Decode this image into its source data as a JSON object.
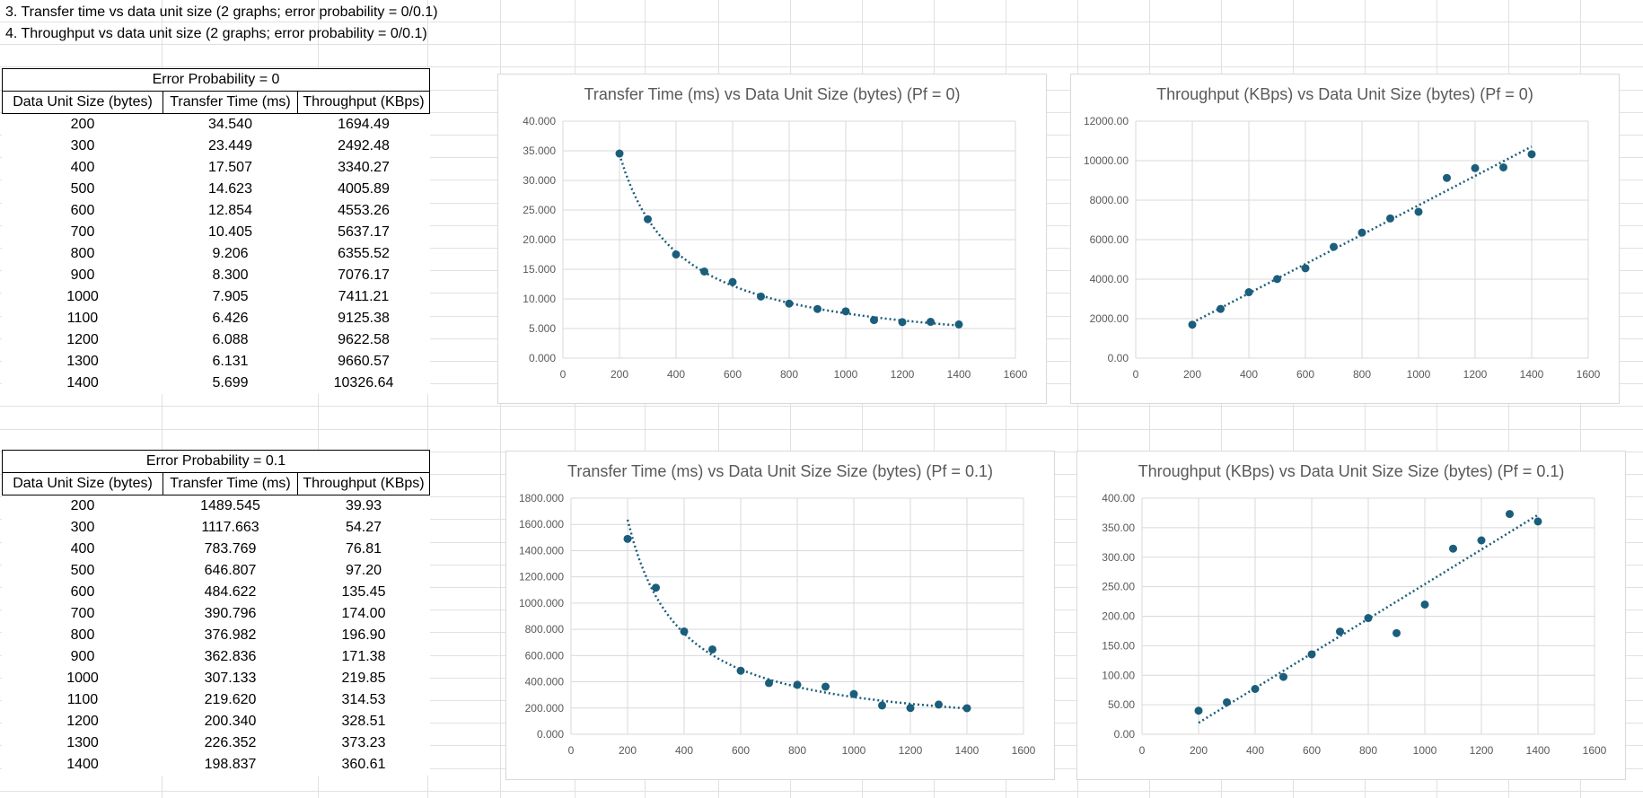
{
  "notes": [
    "3. Transfer time vs data unit size (2 graphs; error probability = 0/0.1)",
    "4. Throughput vs data unit size (2 graphs; error probability = 0/0.1)"
  ],
  "tables": [
    {
      "title": "Error Probability = 0",
      "headers": [
        "Data Unit Size (bytes)",
        "Transfer Time (ms)",
        "Throughput (KBps)"
      ],
      "rows": [
        [
          "200",
          "34.540",
          "1694.49"
        ],
        [
          "300",
          "23.449",
          "2492.48"
        ],
        [
          "400",
          "17.507",
          "3340.27"
        ],
        [
          "500",
          "14.623",
          "4005.89"
        ],
        [
          "600",
          "12.854",
          "4553.26"
        ],
        [
          "700",
          "10.405",
          "5637.17"
        ],
        [
          "800",
          "9.206",
          "6355.52"
        ],
        [
          "900",
          "8.300",
          "7076.17"
        ],
        [
          "1000",
          "7.905",
          "7411.21"
        ],
        [
          "1100",
          "6.426",
          "9125.38"
        ],
        [
          "1200",
          "6.088",
          "9622.58"
        ],
        [
          "1300",
          "6.131",
          "9660.57"
        ],
        [
          "1400",
          "5.699",
          "10326.64"
        ]
      ]
    },
    {
      "title": "Error Probability = 0.1",
      "headers": [
        "Data Unit Size (bytes)",
        "Transfer Time (ms)",
        "Throughput (KBps)"
      ],
      "rows": [
        [
          "200",
          "1489.545",
          "39.93"
        ],
        [
          "300",
          "1117.663",
          "54.27"
        ],
        [
          "400",
          "783.769",
          "76.81"
        ],
        [
          "500",
          "646.807",
          "97.20"
        ],
        [
          "600",
          "484.622",
          "135.45"
        ],
        [
          "700",
          "390.796",
          "174.00"
        ],
        [
          "800",
          "376.982",
          "196.90"
        ],
        [
          "900",
          "362.836",
          "171.38"
        ],
        [
          "1000",
          "307.133",
          "219.85"
        ],
        [
          "1100",
          "219.620",
          "314.53"
        ],
        [
          "1200",
          "200.340",
          "328.51"
        ],
        [
          "1300",
          "226.352",
          "373.23"
        ],
        [
          "1400",
          "198.837",
          "360.61"
        ]
      ]
    }
  ],
  "colors": {
    "marker": "#1b5e7b",
    "gridline": "#d9d9d9",
    "axis_text": "#595959"
  },
  "chart_data": [
    {
      "type": "scatter",
      "title": "Transfer Time (ms) vs Data Unit Size (bytes) (Pf = 0)",
      "x": [
        200,
        300,
        400,
        500,
        600,
        700,
        800,
        900,
        1000,
        1100,
        1200,
        1300,
        1400
      ],
      "y": [
        34.54,
        23.449,
        17.507,
        14.623,
        12.854,
        10.405,
        9.206,
        8.3,
        7.905,
        6.426,
        6.088,
        6.131,
        5.699
      ],
      "xlim": [
        0,
        1600
      ],
      "xticks": [
        0,
        200,
        400,
        600,
        800,
        1000,
        1200,
        1400,
        1600
      ],
      "ylim": [
        0,
        40
      ],
      "yticks": [
        0,
        5,
        10,
        15,
        20,
        25,
        30,
        35,
        40
      ],
      "ytick_decimals": 3,
      "trendline": "power",
      "grid": true
    },
    {
      "type": "scatter",
      "title": "Throughput (KBps) vs Data Unit Size (bytes) (Pf = 0)",
      "x": [
        200,
        300,
        400,
        500,
        600,
        700,
        800,
        900,
        1000,
        1100,
        1200,
        1300,
        1400
      ],
      "y": [
        1694.49,
        2492.48,
        3340.27,
        4005.89,
        4553.26,
        5637.17,
        6355.52,
        7076.17,
        7411.21,
        9125.38,
        9622.58,
        9660.57,
        10326.64
      ],
      "xlim": [
        0,
        1600
      ],
      "xticks": [
        0,
        200,
        400,
        600,
        800,
        1000,
        1200,
        1400,
        1600
      ],
      "ylim": [
        0,
        12000
      ],
      "yticks": [
        0,
        2000,
        4000,
        6000,
        8000,
        10000,
        12000
      ],
      "ytick_decimals": 2,
      "trendline": "linear",
      "grid": true
    },
    {
      "type": "scatter",
      "title": "Transfer Time (ms) vs Data Unit Size Size (bytes) (Pf = 0.1)",
      "x": [
        200,
        300,
        400,
        500,
        600,
        700,
        800,
        900,
        1000,
        1100,
        1200,
        1300,
        1400
      ],
      "y": [
        1489.545,
        1117.663,
        783.769,
        646.807,
        484.622,
        390.796,
        376.982,
        362.836,
        307.133,
        219.62,
        200.34,
        226.352,
        198.837
      ],
      "xlim": [
        0,
        1600
      ],
      "xticks": [
        0,
        200,
        400,
        600,
        800,
        1000,
        1200,
        1400,
        1600
      ],
      "ylim": [
        0,
        1800
      ],
      "yticks": [
        0,
        200,
        400,
        600,
        800,
        1000,
        1200,
        1400,
        1600,
        1800
      ],
      "ytick_decimals": 3,
      "trendline": "power",
      "grid": true
    },
    {
      "type": "scatter",
      "title": "Throughput (KBps) vs Data Unit Size Size (bytes) (Pf = 0.1)",
      "x": [
        200,
        300,
        400,
        500,
        600,
        700,
        800,
        900,
        1000,
        1100,
        1200,
        1300,
        1400
      ],
      "y": [
        39.93,
        54.27,
        76.81,
        97.2,
        135.45,
        174.0,
        196.9,
        171.38,
        219.85,
        314.53,
        328.51,
        373.23,
        360.61
      ],
      "xlim": [
        0,
        1600
      ],
      "xticks": [
        0,
        200,
        400,
        600,
        800,
        1000,
        1200,
        1400,
        1600
      ],
      "ylim": [
        0,
        400
      ],
      "yticks": [
        0,
        50,
        100,
        150,
        200,
        250,
        300,
        350,
        400
      ],
      "ytick_decimals": 2,
      "trendline": "linear",
      "grid": true
    }
  ]
}
